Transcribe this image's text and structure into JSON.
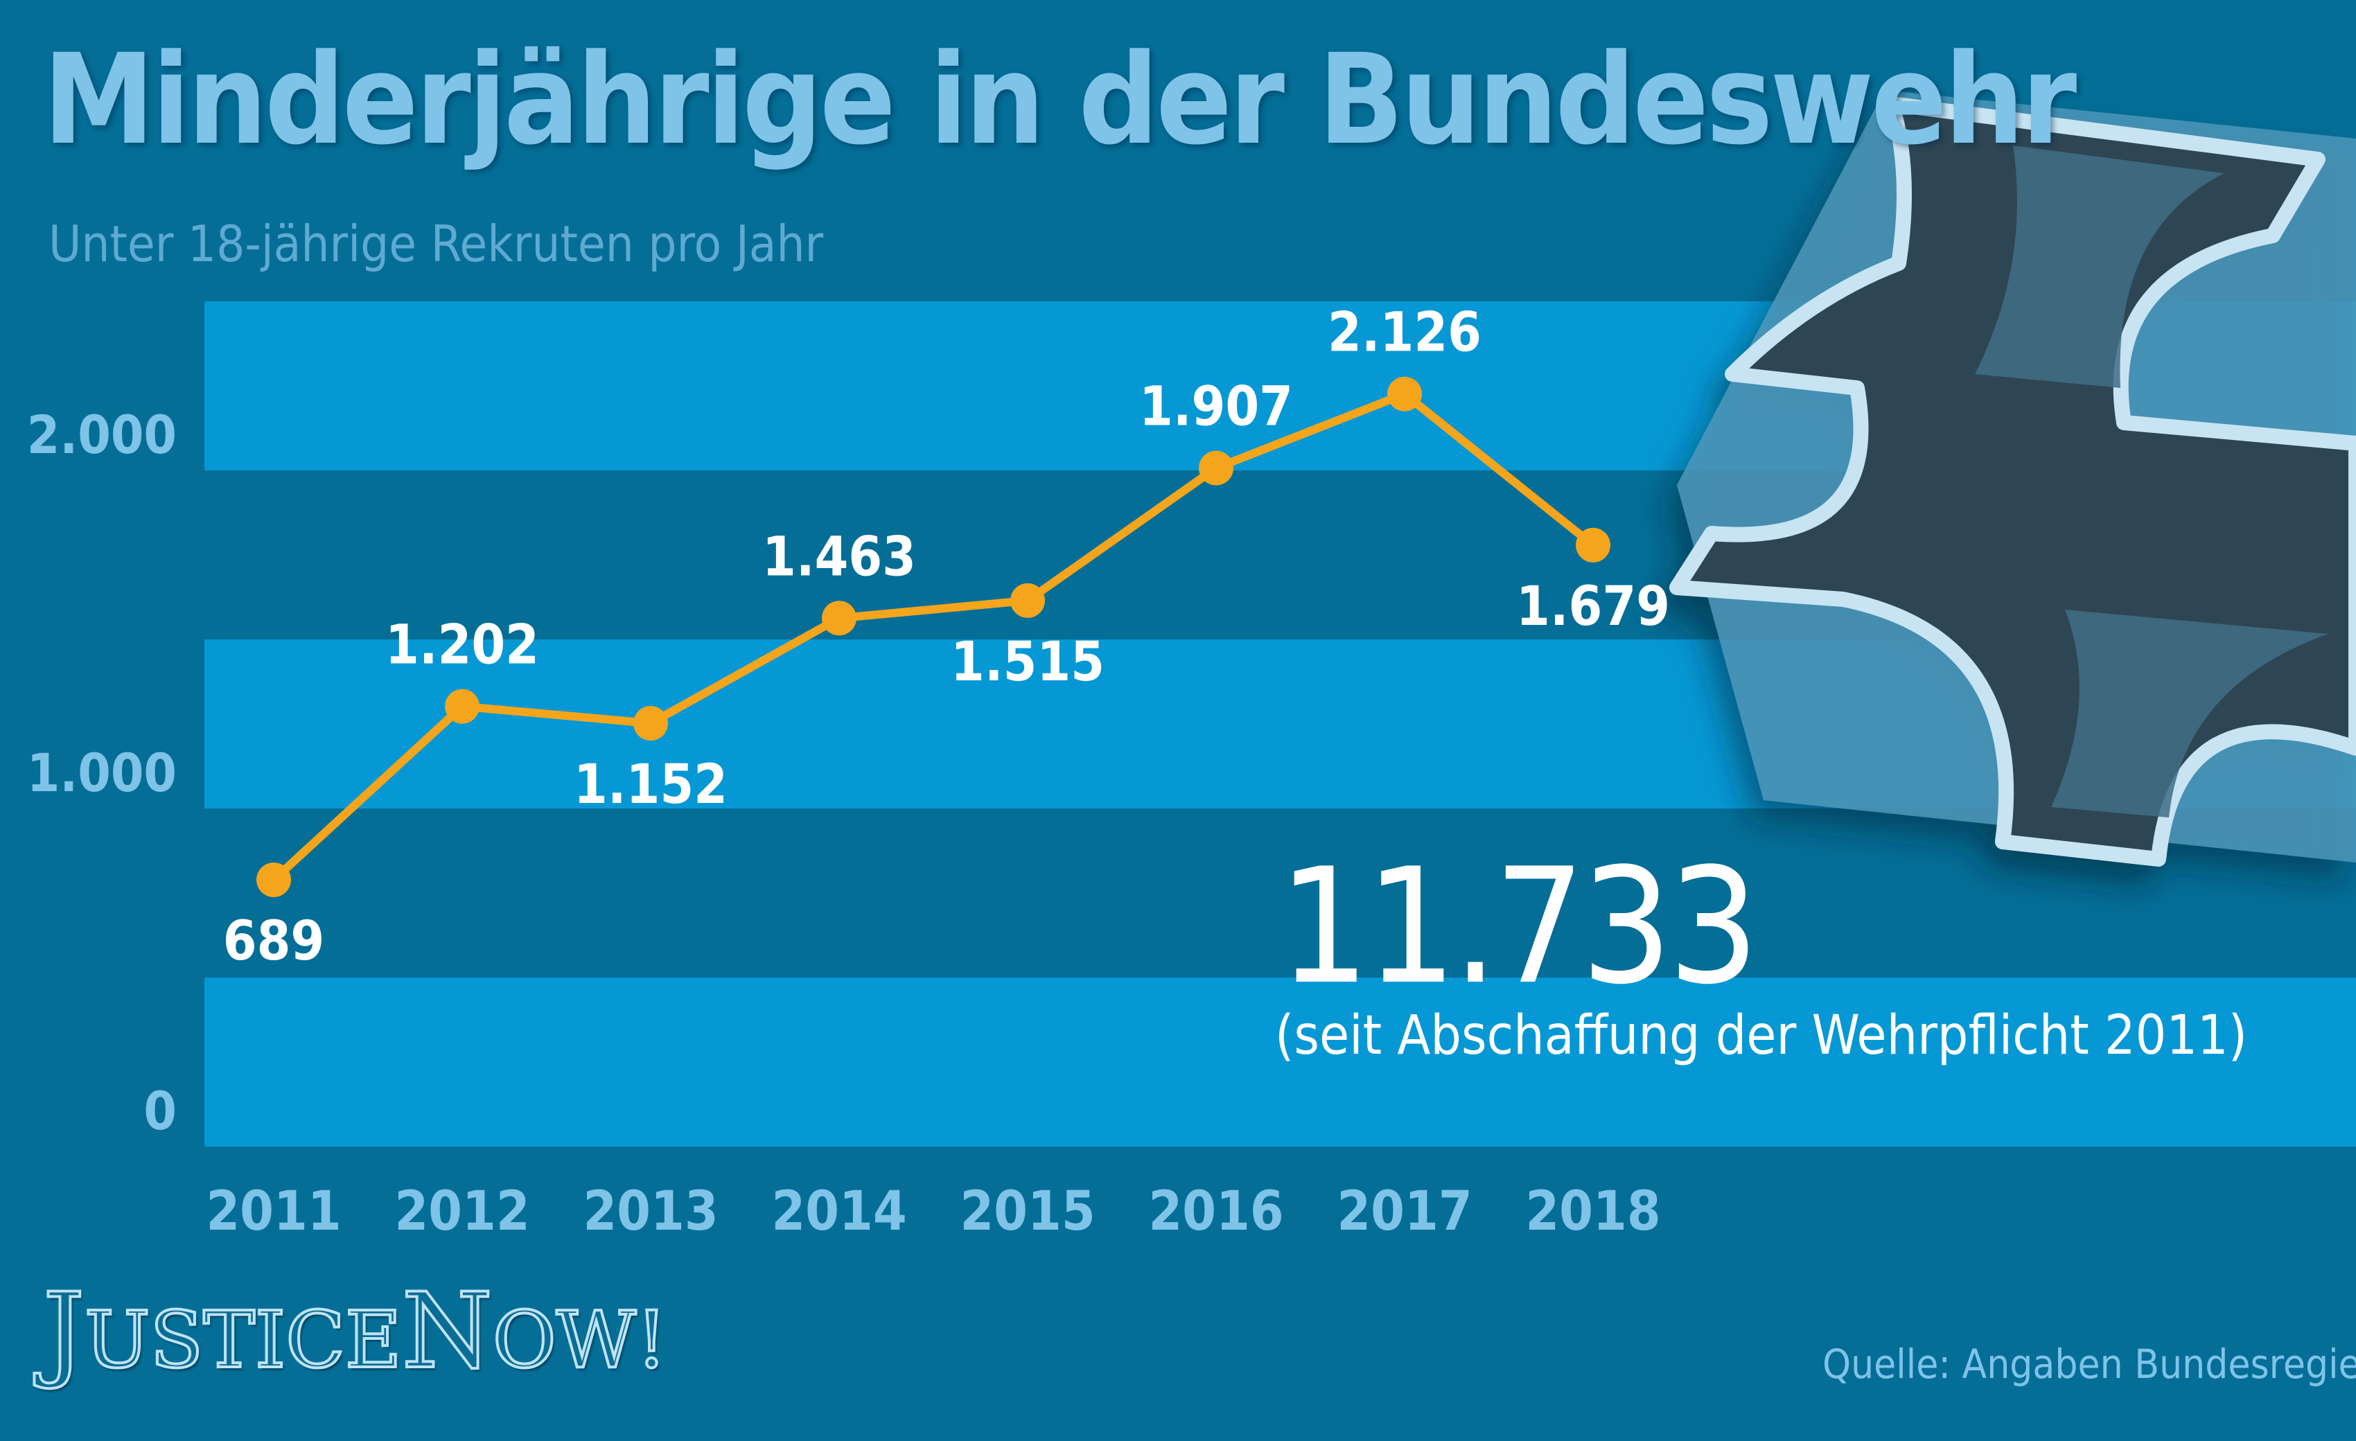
{
  "header": {
    "title": "Minderjährige in der Bundeswehr",
    "subtitle": "Unter 18-jährige Rekruten pro Jahr"
  },
  "highlight": {
    "total": "11.733",
    "note": "(seit Abschaffung der Wehrpflicht 2011)"
  },
  "footer": {
    "source": "Quelle: Angaben Bundesregierung",
    "brand": [
      "J",
      "USTICE",
      "N",
      "OW!"
    ]
  },
  "emblem": {
    "icon": "bundeswehr-cross-icon"
  },
  "colors": {
    "background": "#046e97",
    "band": "#0698d4",
    "line": "#f5a51c",
    "axis_text": "#7fc3e8",
    "label_text": "#ffffff"
  },
  "chart_data": {
    "type": "line",
    "categories": [
      "2011",
      "2012",
      "2013",
      "2014",
      "2015",
      "2016",
      "2017",
      "2018"
    ],
    "values": [
      689,
      1202,
      1152,
      1463,
      1515,
      1907,
      2126,
      1679
    ],
    "labels": [
      "689",
      "1.202",
      "1.152",
      "1.463",
      "1.515",
      "1.907",
      "2.126",
      "1.679"
    ],
    "label_positions": [
      "below",
      "above",
      "below",
      "above",
      "below",
      "above",
      "above",
      "below"
    ],
    "yticks": [
      0,
      1000,
      2000
    ],
    "ytick_labels": [
      "0",
      "1.000",
      "2.000"
    ],
    "ylim": [
      -100,
      2400
    ],
    "grid": "alternating bands",
    "legend": "none"
  }
}
